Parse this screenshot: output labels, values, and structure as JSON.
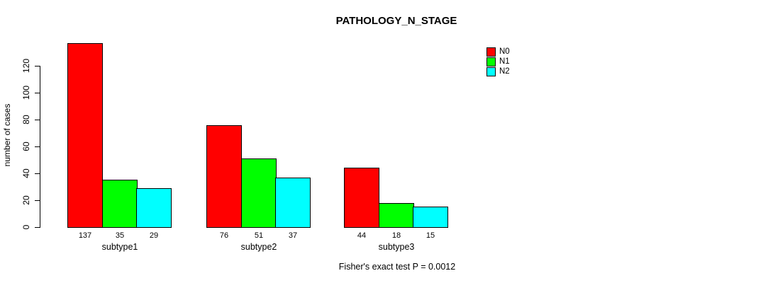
{
  "chart_data": {
    "type": "bar",
    "title": "PATHOLOGY_N_STAGE",
    "ylabel": "number of cases",
    "xlabel": "",
    "categories": [
      "subtype1",
      "subtype2",
      "subtype3"
    ],
    "series": [
      {
        "name": "N0",
        "color": "#FF0000",
        "values": [
          137,
          76,
          44
        ]
      },
      {
        "name": "N1",
        "color": "#00FF00",
        "values": [
          35,
          51,
          18
        ]
      },
      {
        "name": "N2",
        "color": "#00FFFF",
        "values": [
          29,
          37,
          15
        ]
      }
    ],
    "bar_value_labels": [
      [
        "137",
        "35",
        "29"
      ],
      [
        "76",
        "51",
        "37"
      ],
      [
        "44",
        "18",
        "15"
      ]
    ],
    "y_ticks": [
      0,
      20,
      40,
      60,
      80,
      100,
      120
    ],
    "ylim": [
      0,
      140
    ],
    "grid": false,
    "legend_position": "top-right",
    "annotation": "Fisher's exact test P = 0.0012",
    "bar_border_color": "#000000",
    "background_color": "#FFFFFF"
  }
}
